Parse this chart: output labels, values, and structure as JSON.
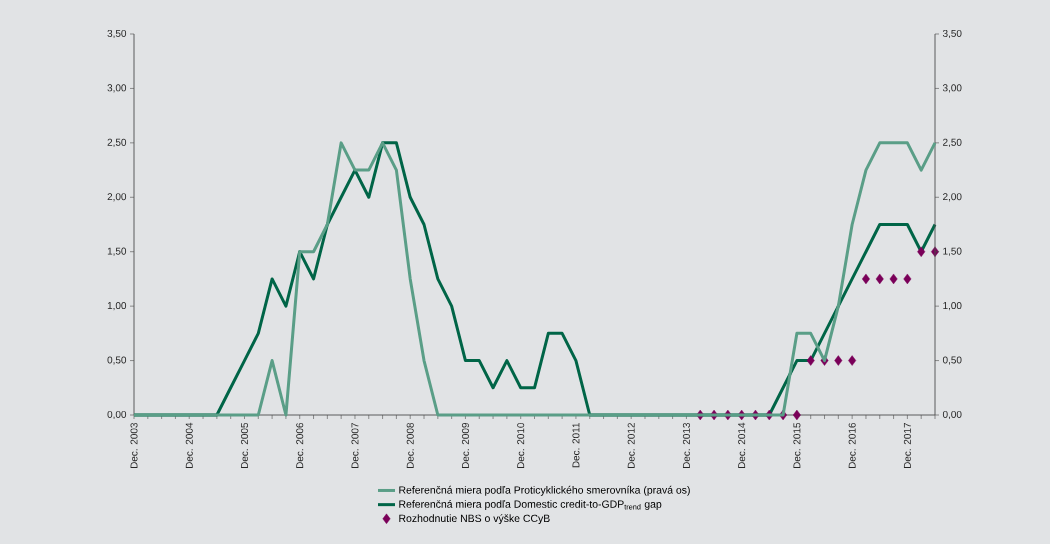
{
  "chart_data": {
    "type": "line",
    "categories": [
      "Dec. 2003",
      null,
      null,
      null,
      "Dec. 2004",
      null,
      null,
      null,
      "Dec. 2005",
      null,
      null,
      null,
      "Dec. 2006",
      null,
      null,
      null,
      "Dec. 2007",
      null,
      null,
      null,
      "Dec. 2008",
      null,
      null,
      null,
      "Dec. 2009",
      null,
      null,
      null,
      "Dec. 2010",
      null,
      null,
      null,
      "Dec. 2011",
      null,
      null,
      null,
      "Dec. 2012",
      null,
      null,
      null,
      "Dec. 2013",
      null,
      null,
      null,
      "Dec. 2014",
      null,
      null,
      null,
      "Dec. 2015",
      null,
      null,
      null,
      "Dec. 2016",
      null,
      null,
      null,
      "Dec. 2017",
      null,
      null
    ],
    "series": [
      {
        "name": "Referenčná miera podľa Proticyklického smerovníka (pravá os)",
        "axis": "y2",
        "color": "#5a9e87",
        "marker": "none",
        "values": [
          0,
          0,
          0,
          0,
          0,
          0,
          0,
          0,
          0,
          0,
          0.5,
          0,
          1.5,
          1.5,
          1.75,
          2.5,
          2.25,
          2.25,
          2.5,
          2.25,
          1.25,
          0.5,
          0,
          0,
          0,
          0,
          0,
          0,
          0,
          0,
          0,
          0,
          0,
          0,
          0,
          0,
          0,
          0,
          0,
          0,
          0,
          0,
          0,
          0,
          0,
          0,
          0,
          0,
          0.75,
          0.75,
          0.5,
          1.0,
          1.75,
          2.25,
          2.5,
          2.5,
          2.5,
          2.25,
          2.5
        ]
      },
      {
        "name": "Referenčná miera podľa Domestic credit-to-GDP$_{trend}$ gap",
        "color": "#006547",
        "marker": "none",
        "values": [
          0,
          0,
          0,
          0,
          0,
          0,
          0,
          0.25,
          0.5,
          0.75,
          1.25,
          1.0,
          1.5,
          1.25,
          1.75,
          2.0,
          2.25,
          2.0,
          2.5,
          2.5,
          2.0,
          1.75,
          1.25,
          1.0,
          0.5,
          0.5,
          0.25,
          0.5,
          0.25,
          0.25,
          0.75,
          0.75,
          0.5,
          0,
          0,
          0,
          0,
          0,
          0,
          0,
          0,
          0,
          0,
          0,
          0,
          0,
          0,
          0.25,
          0.5,
          0.5,
          0.75,
          1.0,
          1.25,
          1.5,
          1.75,
          1.75,
          1.75,
          1.5,
          1.75
        ]
      },
      {
        "name": "Rozhodnutie NBS o výške CCyB",
        "type": "scatter",
        "color": "#7a0059",
        "marker": "diamond",
        "values": [
          null,
          null,
          null,
          null,
          null,
          null,
          null,
          null,
          null,
          null,
          null,
          null,
          null,
          null,
          null,
          null,
          null,
          null,
          null,
          null,
          null,
          null,
          null,
          null,
          null,
          null,
          null,
          null,
          null,
          null,
          null,
          null,
          null,
          null,
          null,
          null,
          null,
          null,
          null,
          null,
          null,
          0,
          0,
          0,
          0,
          0,
          0,
          0,
          0,
          0.5,
          0.5,
          0.5,
          0.5,
          1.25,
          1.25,
          1.25,
          1.25,
          1.5,
          1.5
        ]
      }
    ],
    "ylim": [
      0,
      3.5
    ],
    "yticks": [
      {
        "value": 0,
        "label": "0,00"
      },
      {
        "value": 0.5,
        "label": "0,50"
      },
      {
        "value": 1,
        "label": "1,00"
      },
      {
        "value": 1.5,
        "label": "1,50"
      },
      {
        "value": 2,
        "label": "2,00"
      },
      {
        "value": 2.5,
        "label": "2,50"
      },
      {
        "value": 3,
        "label": "3,00"
      },
      {
        "value": 3.5,
        "label": "3,50"
      }
    ],
    "y2lim": [
      0,
      3.5
    ],
    "y2ticks": [
      {
        "value": 0,
        "label": "0,00"
      },
      {
        "value": 0.5,
        "label": "0,50"
      },
      {
        "value": 1,
        "label": "1,00"
      },
      {
        "value": 1.5,
        "label": "1,50"
      },
      {
        "value": 2,
        "label": "2,00"
      },
      {
        "value": 2.5,
        "label": "2,50"
      },
      {
        "value": 3,
        "label": "3,00"
      },
      {
        "value": 3.5,
        "label": "3,50"
      }
    ],
    "grid": false,
    "legend": "bottom"
  }
}
